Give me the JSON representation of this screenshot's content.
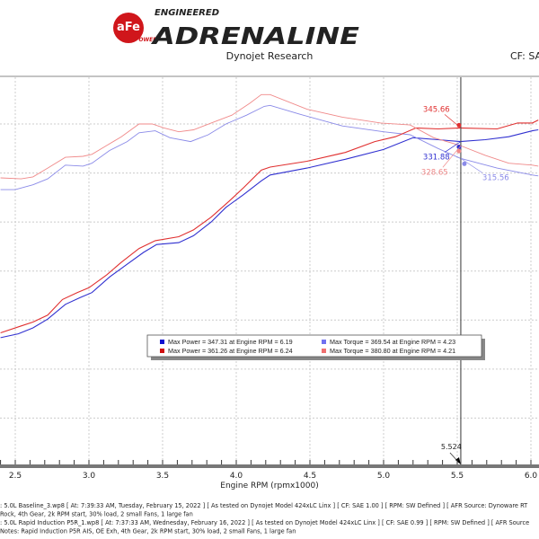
{
  "header": {
    "logo_badge": "aFe",
    "logo_badge_sub": "POWER",
    "logo_small": "ENGINEERED",
    "logo_large": "ADRENALINE",
    "subtitle": "Dynojet Research",
    "cf_label": "CF: SA"
  },
  "colors": {
    "run2_power": "#e03030",
    "run2_torque": "#f08a8a",
    "run1_power": "#3030d0",
    "run1_torque": "#8a8ae8",
    "cursor": "#555555",
    "logo_red": "#d0161b"
  },
  "chart_data": {
    "type": "line",
    "xlabel": "Engine RPM (rpmx1000)",
    "xlim": [
      2.4,
      6.05
    ],
    "ylim": [
      0,
      395
    ],
    "x_ticks": [
      "2.5",
      "3.0",
      "3.5",
      "4.0",
      "4.5",
      "5.0",
      "5.5",
      "6.0"
    ],
    "y_gridlines": [
      50,
      100,
      150,
      200,
      250,
      300,
      350
    ],
    "grid": true,
    "cursor": {
      "rpm": 5.524,
      "label": "5.524",
      "readouts": [
        {
          "value": "345.66",
          "series": 2
        },
        {
          "value": "331.88",
          "series": 0
        },
        {
          "value": "328.65",
          "series": 3
        },
        {
          "value": "315.56",
          "series": 1
        }
      ]
    },
    "series": [
      {
        "run": 1,
        "kind": "power",
        "x": [
          2.4,
          2.52,
          2.62,
          2.72,
          2.84,
          2.94,
          3.02,
          3.14,
          3.26,
          3.37,
          3.46,
          3.61,
          3.71,
          3.83,
          3.93,
          4.05,
          4.17,
          4.23,
          4.48,
          4.74,
          5.0,
          5.2,
          5.37,
          5.52,
          5.69,
          5.85,
          6.01,
          6.05
        ],
        "y": [
          132,
          136,
          142,
          151,
          166,
          173,
          178,
          194,
          207,
          219,
          227,
          229,
          236,
          250,
          265,
          278,
          292,
          298,
          305,
          314,
          324,
          336,
          334,
          332,
          334,
          337,
          343,
          344
        ]
      },
      {
        "run": 1,
        "kind": "torque",
        "x": [
          2.4,
          2.5,
          2.62,
          2.72,
          2.84,
          2.96,
          3.02,
          3.14,
          3.26,
          3.34,
          3.45,
          3.55,
          3.69,
          3.81,
          3.93,
          4.07,
          4.19,
          4.23,
          4.43,
          4.72,
          5.0,
          5.18,
          5.37,
          5.52,
          5.77,
          6.01,
          6.05
        ],
        "y": [
          283,
          283,
          288,
          294,
          308,
          307,
          310,
          323,
          332,
          341,
          343,
          336,
          332,
          339,
          350,
          359,
          368,
          369,
          360,
          348,
          342,
          339,
          325,
          315,
          305,
          298,
          297
        ]
      },
      {
        "run": 2,
        "kind": "power",
        "x": [
          2.4,
          2.54,
          2.62,
          2.72,
          2.82,
          2.92,
          3.0,
          3.12,
          3.22,
          3.34,
          3.45,
          3.61,
          3.71,
          3.83,
          3.95,
          4.05,
          4.17,
          4.23,
          4.48,
          4.74,
          4.94,
          5.08,
          5.22,
          5.37,
          5.52,
          5.77,
          5.91,
          6.01,
          6.05
        ],
        "y": [
          137,
          144,
          148,
          155,
          171,
          178,
          183,
          196,
          209,
          223,
          231,
          235,
          242,
          255,
          271,
          285,
          303,
          306,
          312,
          321,
          332,
          337,
          346,
          345,
          346,
          345,
          351,
          351,
          354
        ]
      },
      {
        "run": 2,
        "kind": "torque",
        "x": [
          2.4,
          2.54,
          2.62,
          2.72,
          2.84,
          2.96,
          3.02,
          3.12,
          3.22,
          3.34,
          3.43,
          3.51,
          3.61,
          3.71,
          3.83,
          3.97,
          4.09,
          4.17,
          4.23,
          4.48,
          4.72,
          4.98,
          5.18,
          5.34,
          5.52,
          5.69,
          5.85,
          6.01,
          6.05
        ],
        "y": [
          295,
          294,
          296,
          305,
          316,
          317,
          319,
          328,
          337,
          350,
          350,
          346,
          342,
          344,
          351,
          359,
          371,
          380,
          380,
          365,
          357,
          351,
          349,
          336,
          328,
          318,
          310,
          308,
          307
        ]
      }
    ],
    "legend": {
      "placement": "center",
      "entries": [
        {
          "text": "Max Power = 347.31 at Engine RPM = 6.19",
          "color": "#1010d0"
        },
        {
          "text": "Max Torque = 369.54 at Engine RPM = 4.23",
          "color": "#7070f0"
        },
        {
          "text": "Max Power = 361.26 at Engine RPM = 6.24",
          "color": "#d01010"
        },
        {
          "text": "Max Torque = 380.80 at Engine RPM = 4.21",
          "color": "#f07070"
        }
      ]
    }
  },
  "footer": {
    "lines": [
      ": 5.0L Baseline_3.wp8 [ At: 7:39:33 AM, Tuesday, February 15, 2022 ] [ As tested on Dynojet Model 424xLC Linx ] [ CF: SAE 1.00 ] [ RPM: SW Defined ] [ AFR Source: Dynoware RT",
      "Rock, 4th Gear, 2k RPM start, 30% load, 2 small Fans, 1 large fan",
      ": 5.0L Rapid Induction P5R_1.wp8 [ At: 7:37:33 AM, Wednesday, February 16, 2022 ] [ As tested on Dynojet Model 424xLC Linx ] [ CF: SAE 0.99 ] [ RPM: SW Defined ] [ AFR Source",
      " Notes: Rapid Induction P5R AIS, OE Exh, 4th Gear, 2k RPM start, 30% load, 2 small Fans, 1 large fan"
    ]
  }
}
